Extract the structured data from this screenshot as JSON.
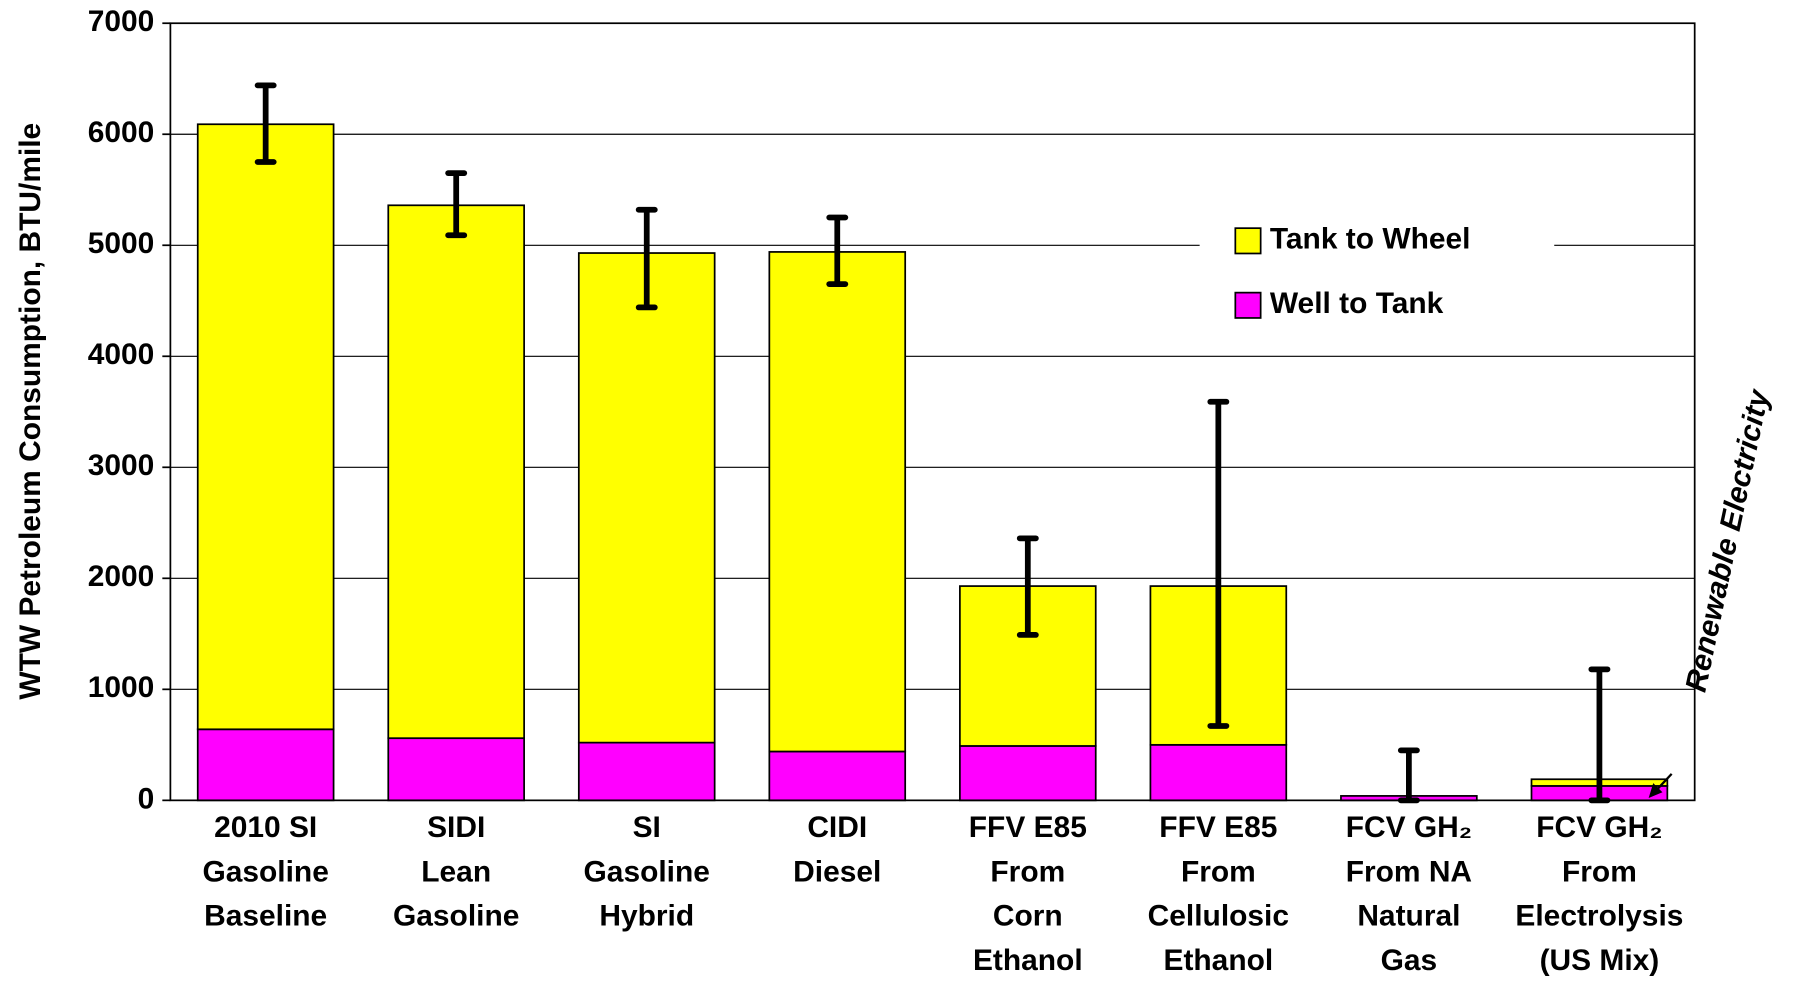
{
  "chart_data": {
    "type": "stacked_bar",
    "y_label": "WTW Petroleum Consumption, BTU/mile",
    "categories": [
      [
        "2010 SI",
        "Gasoline",
        "Baseline"
      ],
      [
        "SIDI",
        "Lean",
        "Gasoline"
      ],
      [
        "SI",
        "Gasoline",
        "Hybrid"
      ],
      [
        "CIDI",
        "Diesel"
      ],
      [
        "FFV E85",
        "From",
        "Corn",
        "Ethanol"
      ],
      [
        "FFV E85",
        "From",
        "Cellulosic",
        "Ethanol"
      ],
      [
        "FCV GH₂",
        "From NA",
        "Natural",
        "Gas"
      ],
      [
        "FCV GH₂",
        "From",
        "Electrolysis",
        "(US Mix)"
      ]
    ],
    "series": [
      {
        "name": "Well to Tank",
        "color": "#ff00ff",
        "values": [
          640,
          560,
          520,
          440,
          490,
          500,
          40,
          130
        ]
      },
      {
        "name": "Tank to Wheel",
        "color": "#ffff00",
        "values": [
          5450,
          4800,
          4410,
          4500,
          1440,
          1430,
          0,
          60
        ]
      }
    ],
    "error_range": [
      [
        5750,
        6440
      ],
      [
        5090,
        5650
      ],
      [
        4440,
        5320
      ],
      [
        4650,
        5250
      ],
      [
        1490,
        2360
      ],
      [
        670,
        3590
      ],
      [
        0,
        450
      ],
      [
        0,
        1180
      ]
    ],
    "annotation": "Renewable Electricity",
    "ylim": [
      0,
      7000
    ],
    "yticks": [
      0,
      1000,
      2000,
      3000,
      4000,
      5000,
      6000,
      7000
    ],
    "grid": true
  }
}
